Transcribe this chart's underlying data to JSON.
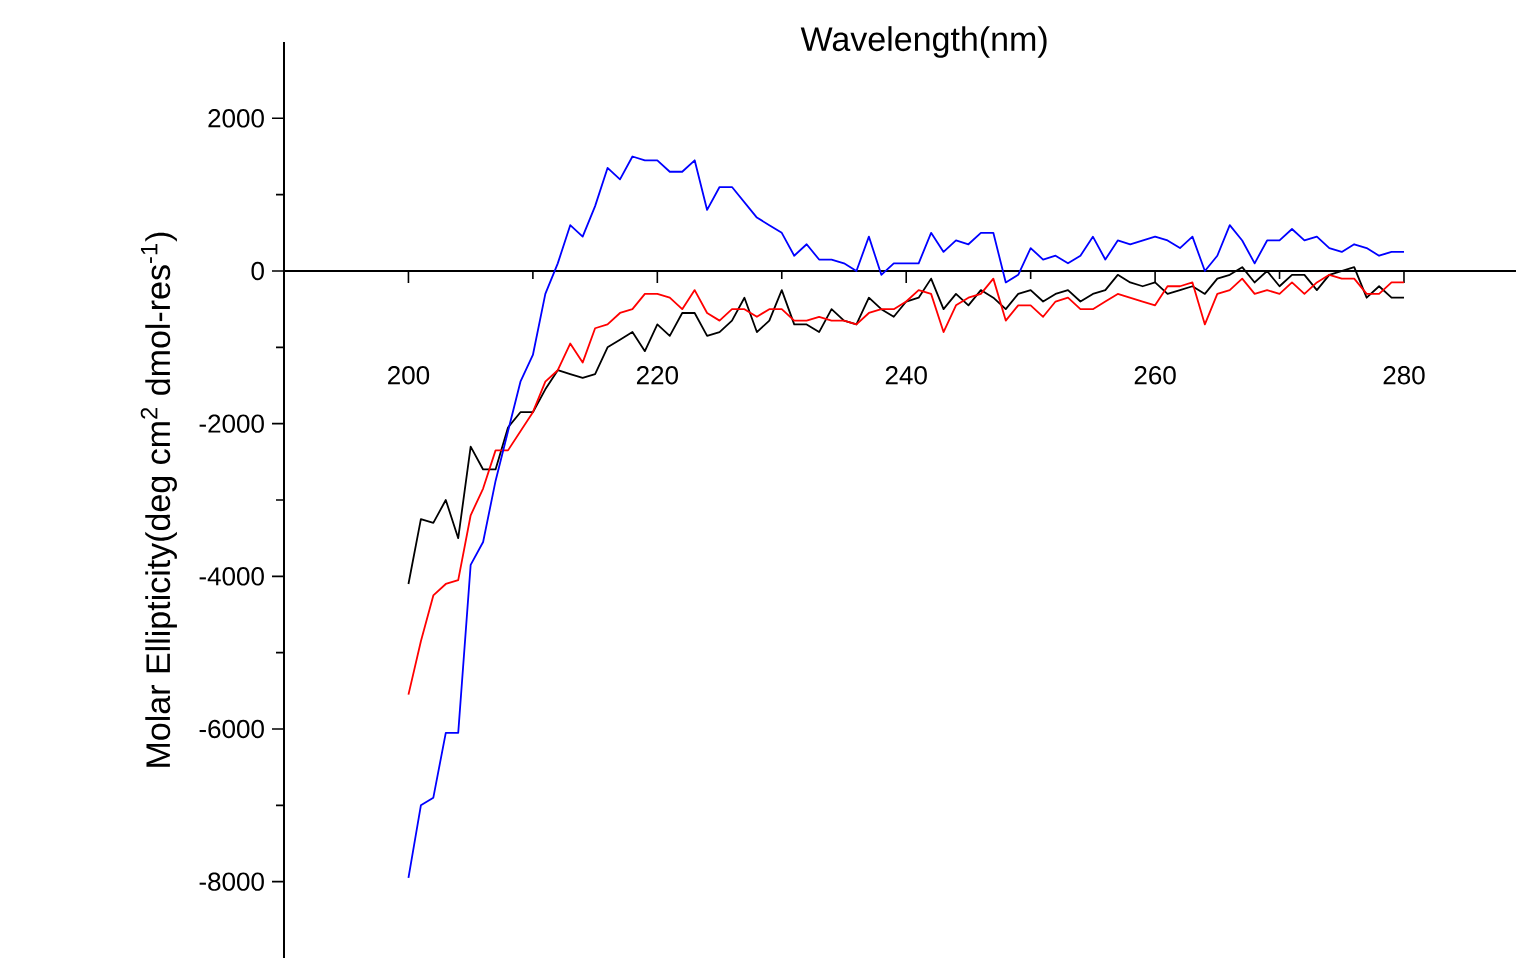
{
  "chart_data": {
    "type": "line",
    "xlabel": "Wavelength(nm)",
    "ylabel": "Molar Ellipticity(deg cm$^{2}$ dmol-res$^{-1}$)",
    "xlim": [
      190,
      289
    ],
    "ylim": [
      -9000,
      3000
    ],
    "xticks": [
      200,
      220,
      240,
      260,
      280
    ],
    "yticks": [
      -8000,
      -6000,
      -4000,
      -2000,
      0,
      2000
    ],
    "x": [
      200,
      201,
      202,
      203,
      204,
      205,
      206,
      207,
      208,
      209,
      210,
      211,
      212,
      213,
      214,
      215,
      216,
      217,
      218,
      219,
      220,
      221,
      222,
      223,
      224,
      225,
      226,
      227,
      228,
      229,
      230,
      231,
      232,
      233,
      234,
      235,
      236,
      237,
      238,
      239,
      240,
      241,
      242,
      243,
      244,
      245,
      246,
      247,
      248,
      249,
      250,
      251,
      252,
      253,
      254,
      255,
      256,
      257,
      258,
      259,
      260,
      261,
      262,
      263,
      264,
      265,
      266,
      267,
      268,
      269,
      270,
      271,
      272,
      273,
      274,
      275,
      276,
      277,
      278,
      279,
      280
    ],
    "series": [
      {
        "color": "#000000",
        "values": [
          -4100,
          -3250,
          -3300,
          -3000,
          -3500,
          -2300,
          -2600,
          -2600,
          -2050,
          -1850,
          -1850,
          -1550,
          -1300,
          -1350,
          -1400,
          -1350,
          -1000,
          -900,
          -800,
          -1050,
          -700,
          -850,
          -550,
          -550,
          -850,
          -800,
          -650,
          -350,
          -800,
          -650,
          -250,
          -700,
          -700,
          -800,
          -500,
          -650,
          -700,
          -350,
          -500,
          -600,
          -400,
          -350,
          -100,
          -500,
          -300,
          -450,
          -250,
          -350,
          -500,
          -300,
          -250,
          -400,
          -300,
          -250,
          -400,
          -300,
          -250,
          -50,
          -150,
          -200,
          -150,
          -300,
          -250,
          -200,
          -300,
          -100,
          -50,
          50,
          -150,
          0,
          -200,
          -50,
          -50,
          -250,
          -50,
          0,
          50,
          -350,
          -200,
          -350,
          -350
        ]
      },
      {
        "color": "#ff0000",
        "values": [
          -5550,
          -4850,
          -4250,
          -4100,
          -4050,
          -3200,
          -2850,
          -2350,
          -2350,
          -2100,
          -1850,
          -1450,
          -1300,
          -950,
          -1200,
          -750,
          -700,
          -550,
          -500,
          -300,
          -300,
          -350,
          -500,
          -250,
          -550,
          -650,
          -500,
          -500,
          -600,
          -500,
          -500,
          -650,
          -650,
          -600,
          -650,
          -650,
          -700,
          -550,
          -500,
          -500,
          -400,
          -250,
          -300,
          -800,
          -450,
          -350,
          -300,
          -100,
          -650,
          -450,
          -450,
          -600,
          -400,
          -350,
          -500,
          -500,
          -400,
          -300,
          -350,
          -400,
          -450,
          -200,
          -200,
          -150,
          -700,
          -300,
          -250,
          -100,
          -300,
          -250,
          -300,
          -150,
          -300,
          -150,
          -50,
          -100,
          -100,
          -300,
          -300,
          -150,
          -150
        ]
      },
      {
        "color": "#0000ff",
        "values": [
          -7950,
          -7000,
          -6900,
          -6050,
          -6050,
          -3850,
          -3550,
          -2750,
          -2100,
          -1450,
          -1100,
          -300,
          100,
          600,
          450,
          850,
          1350,
          1200,
          1500,
          1450,
          1450,
          1300,
          1300,
          1450,
          800,
          1100,
          1100,
          900,
          700,
          600,
          500,
          200,
          350,
          150,
          150,
          100,
          0,
          450,
          -50,
          100,
          100,
          100,
          500,
          250,
          400,
          350,
          500,
          500,
          -150,
          -50,
          300,
          150,
          200,
          100,
          200,
          450,
          150,
          400,
          350,
          400,
          450,
          400,
          300,
          450,
          0,
          200,
          600,
          400,
          100,
          400,
          400,
          550,
          400,
          450,
          300,
          250,
          350,
          300,
          200,
          250,
          250
        ]
      }
    ]
  }
}
